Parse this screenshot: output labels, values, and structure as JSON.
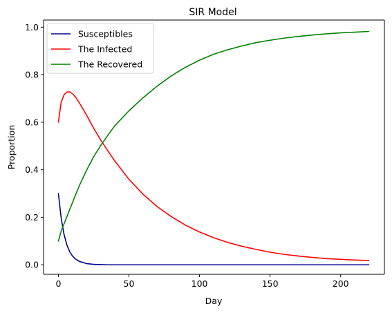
{
  "chart_data": {
    "type": "line",
    "title": "SIR Model",
    "xlabel": "Day",
    "ylabel": "Proportion",
    "xlim": [
      -10.5,
      231
    ],
    "ylim": [
      -0.04,
      1.03
    ],
    "xticks": [
      0,
      50,
      100,
      150,
      200
    ],
    "yticks": [
      0.0,
      0.2,
      0.4,
      0.6,
      0.8,
      1.0
    ],
    "xtick_labels": [
      "0",
      "50",
      "100",
      "150",
      "200"
    ],
    "ytick_labels": [
      "0.0",
      "0.2",
      "0.4",
      "0.6",
      "0.8",
      "1.0"
    ],
    "grid": false,
    "legend_position": "upper-left",
    "x": [
      0,
      2,
      4,
      6,
      8,
      10,
      12,
      15,
      20,
      25,
      30,
      35,
      40,
      50,
      60,
      70,
      80,
      90,
      100,
      110,
      120,
      130,
      140,
      150,
      160,
      170,
      180,
      190,
      200,
      210,
      220
    ],
    "series": [
      {
        "name": "Susceptibles",
        "color": "#00008b",
        "values": [
          0.3,
          0.196,
          0.128,
          0.084,
          0.055,
          0.037,
          0.025,
          0.014,
          0.005,
          0.002,
          0.001,
          0.0,
          0.0,
          0.0,
          0.0,
          0.0,
          0.0,
          0.0,
          0.0,
          0.0,
          0.0,
          0.0,
          0.0,
          0.0,
          0.0,
          0.0,
          0.0,
          0.0,
          0.0,
          0.0,
          0.0
        ]
      },
      {
        "name": "The Infected",
        "color": "#ff0000",
        "values": [
          0.6,
          0.685,
          0.715,
          0.727,
          0.728,
          0.72,
          0.707,
          0.68,
          0.63,
          0.575,
          0.525,
          0.48,
          0.437,
          0.36,
          0.297,
          0.245,
          0.203,
          0.167,
          0.138,
          0.114,
          0.094,
          0.078,
          0.065,
          0.053,
          0.044,
          0.037,
          0.031,
          0.026,
          0.023,
          0.02,
          0.018
        ]
      },
      {
        "name": "The Recovered",
        "color": "#008000",
        "values": [
          0.1,
          0.142,
          0.172,
          0.202,
          0.232,
          0.262,
          0.292,
          0.335,
          0.398,
          0.455,
          0.502,
          0.545,
          0.585,
          0.648,
          0.703,
          0.752,
          0.795,
          0.831,
          0.861,
          0.886,
          0.905,
          0.921,
          0.935,
          0.945,
          0.954,
          0.961,
          0.967,
          0.972,
          0.976,
          0.979,
          0.982
        ]
      }
    ]
  }
}
